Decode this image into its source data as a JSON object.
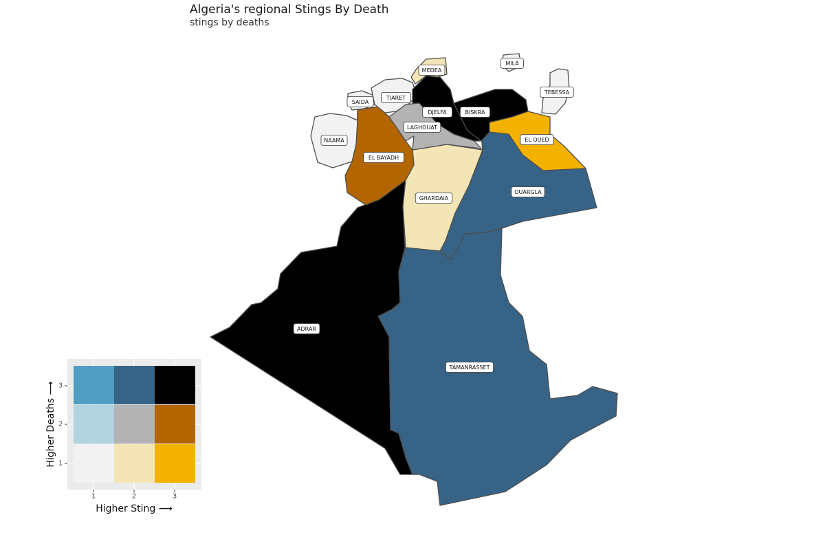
{
  "title": "Algeria's regional Stings By Death",
  "subtitle": "stings by deaths",
  "palette": {
    "1-1": "#f2f2f2",
    "2-1": "#f3e5b5",
    "3-1": "#f4b200",
    "1-2": "#b1d4e0",
    "2-2": "#b3b3b3",
    "3-2": "#b36600",
    "1-3": "#519ec3",
    "2-3": "#376387",
    "3-3": "#000000"
  },
  "regions": [
    {
      "name": "ADRAR",
      "sting": 3,
      "deaths": 3
    },
    {
      "name": "TAMANRASSET",
      "sting": 2,
      "deaths": 3
    },
    {
      "name": "OUARGLA",
      "sting": 2,
      "deaths": 3
    },
    {
      "name": "GHARDAIA",
      "sting": 2,
      "deaths": 1
    },
    {
      "name": "EL BAYADH",
      "sting": 3,
      "deaths": 2
    },
    {
      "name": "NAAMA",
      "sting": 1,
      "deaths": 1
    },
    {
      "name": "SAIDA",
      "sting": 1,
      "deaths": 1
    },
    {
      "name": "TIARET",
      "sting": 1,
      "deaths": 1
    },
    {
      "name": "LAGHOUAT",
      "sting": 2,
      "deaths": 2
    },
    {
      "name": "DJELFA",
      "sting": 3,
      "deaths": 3
    },
    {
      "name": "BISKRA",
      "sting": 3,
      "deaths": 3
    },
    {
      "name": "EL OUED",
      "sting": 3,
      "deaths": 1
    },
    {
      "name": "MEDEA",
      "sting": 2,
      "deaths": 1
    },
    {
      "name": "MILA",
      "sting": 1,
      "deaths": 1
    },
    {
      "name": "TEBESSA",
      "sting": 1,
      "deaths": 1
    }
  ],
  "legend": {
    "x_title": "Higher Sting ⟶",
    "y_title": "Higher Deaths ⟶",
    "x_ticks": [
      "1",
      "2",
      "3"
    ],
    "y_ticks": [
      "1",
      "2",
      "3"
    ]
  }
}
